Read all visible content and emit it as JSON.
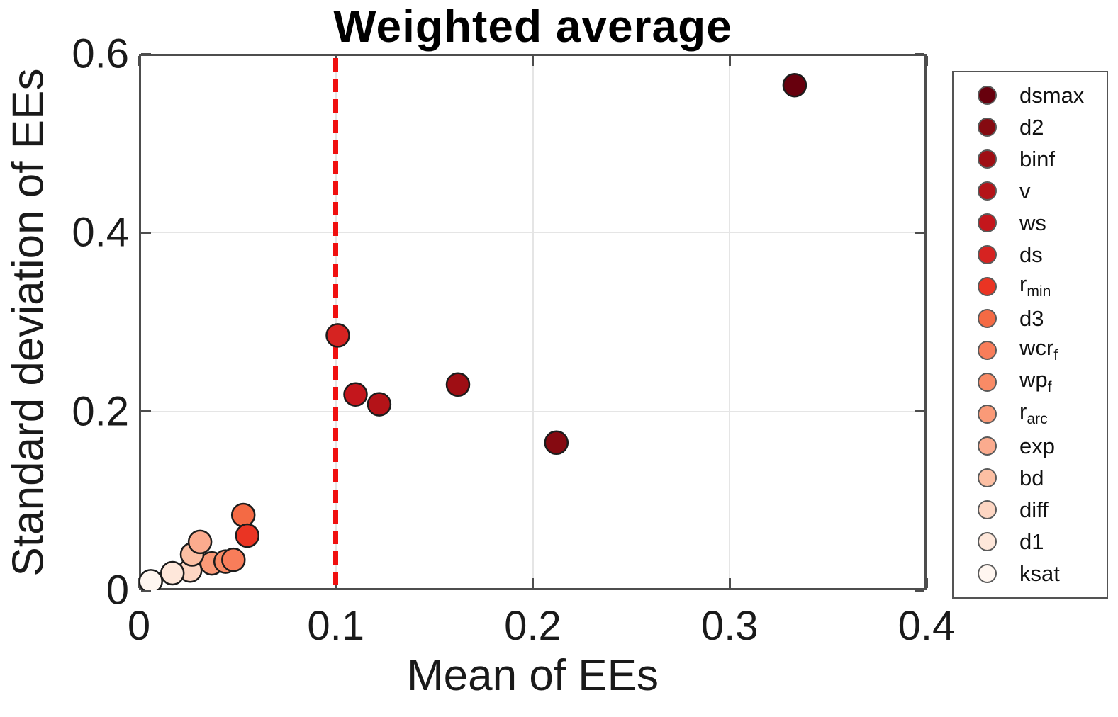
{
  "title": "Weighted average",
  "xlabel": "Mean of EEs",
  "ylabel": "Standard deviation of EEs",
  "colors": {
    "reference_line": "#f01010",
    "spine": "#4d4d4d",
    "grid": "#e5e5e5",
    "marker_edge": "#1c1c1c",
    "legend_marker_edge": "#5a5a5a",
    "background": "#ffffff"
  },
  "chart_data": {
    "type": "scatter",
    "title": "Weighted average",
    "xlabel": "Mean of EEs",
    "ylabel": "Standard deviation of EEs",
    "xlim": [
      0,
      0.4
    ],
    "ylim": [
      0,
      0.6
    ],
    "grid": true,
    "legend_position": "right-outside",
    "x_ticks": [
      {
        "value": 0,
        "label": "0"
      },
      {
        "value": 0.1,
        "label": "0.1"
      },
      {
        "value": 0.2,
        "label": "0.2"
      },
      {
        "value": 0.3,
        "label": "0.3"
      },
      {
        "value": 0.4,
        "label": "0.4"
      }
    ],
    "y_ticks": [
      {
        "value": 0,
        "label": "0"
      },
      {
        "value": 0.2,
        "label": "0.2"
      },
      {
        "value": 0.4,
        "label": "0.4"
      },
      {
        "value": 0.6,
        "label": "0.6"
      }
    ],
    "x_gridlines": [
      0.1,
      0.2,
      0.3
    ],
    "y_gridlines": [
      0.2,
      0.4
    ],
    "reference_line": {
      "x": 0.1,
      "style": "dashed",
      "color": "#f01010"
    },
    "points": [
      {
        "key": "dsmax",
        "base": "dsmax",
        "sub": "",
        "x": 0.333,
        "y": 0.565,
        "color": "#67000d",
        "z": 1
      },
      {
        "key": "d2",
        "base": "d2",
        "sub": "",
        "x": 0.212,
        "y": 0.165,
        "color": "#850a11",
        "z": 2
      },
      {
        "key": "binf",
        "base": "binf",
        "sub": "",
        "x": 0.162,
        "y": 0.23,
        "color": "#9f0e14",
        "z": 3
      },
      {
        "key": "v",
        "base": "v",
        "sub": "",
        "x": 0.122,
        "y": 0.208,
        "color": "#b41318",
        "z": 5
      },
      {
        "key": "ws",
        "base": "ws",
        "sub": "",
        "x": 0.11,
        "y": 0.219,
        "color": "#c4161c",
        "z": 4
      },
      {
        "key": "ds",
        "base": "ds",
        "sub": "",
        "x": 0.101,
        "y": 0.285,
        "color": "#d62321",
        "z": 6
      },
      {
        "key": "rmin",
        "base": "r",
        "sub": "min",
        "x": 0.055,
        "y": 0.061,
        "color": "#ea3423",
        "z": 8
      },
      {
        "key": "d3",
        "base": "d3",
        "sub": "",
        "x": 0.053,
        "y": 0.084,
        "color": "#f46a44",
        "z": 7
      },
      {
        "key": "wcrf",
        "base": "wcr",
        "sub": "f",
        "x": 0.048,
        "y": 0.034,
        "color": "#f87d5a",
        "z": 11
      },
      {
        "key": "wpf",
        "base": "wp",
        "sub": "f",
        "x": 0.044,
        "y": 0.032,
        "color": "#f98b66",
        "z": 10
      },
      {
        "key": "rarc",
        "base": "r",
        "sub": "arc",
        "x": 0.037,
        "y": 0.03,
        "color": "#fa9a78",
        "z": 9
      },
      {
        "key": "exp",
        "base": "exp",
        "sub": "",
        "x": 0.031,
        "y": 0.054,
        "color": "#fbab8e",
        "z": 14
      },
      {
        "key": "bd",
        "base": "bd",
        "sub": "",
        "x": 0.027,
        "y": 0.04,
        "color": "#fcbfa3",
        "z": 13
      },
      {
        "key": "diff",
        "base": "diff",
        "sub": "",
        "x": 0.026,
        "y": 0.022,
        "color": "#fdd6c3",
        "z": 12
      },
      {
        "key": "d1",
        "base": "d1",
        "sub": "",
        "x": 0.017,
        "y": 0.019,
        "color": "#fee7da",
        "z": 15
      },
      {
        "key": "ksat",
        "base": "ksat",
        "sub": "",
        "x": 0.006,
        "y": 0.01,
        "color": "#fff6f0",
        "z": 16
      }
    ]
  }
}
